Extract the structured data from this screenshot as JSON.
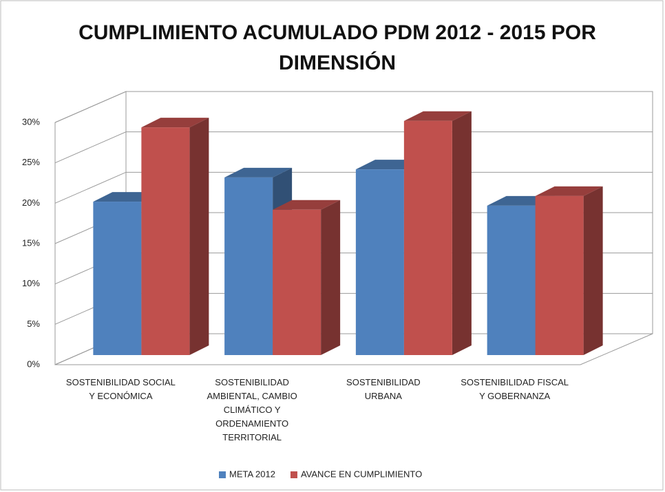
{
  "chart_data": {
    "type": "bar3d",
    "title": "CUMPLIMIENTO ACUMULADO PDM 2012 - 2015 POR DIMENSIÓN",
    "categories": [
      "SOSTENIBILIDAD SOCIAL Y ECONÓMICA",
      "SOSTENIBILIDAD AMBIENTAL, CAMBIO CLIMÁTICO Y ORDENAMIENTO TERRITORIAL",
      "SOSTENIBILIDAD URBANA",
      "SOSTENIBILIDAD FISCAL Y GOBERNANZA"
    ],
    "series": [
      {
        "name": "META 2012",
        "color": "#4f81bd",
        "values": [
          19,
          22,
          23,
          18.5
        ]
      },
      {
        "name": "AVANCE EN CUMPLIMIENTO",
        "color": "#c0504d",
        "values": [
          28.2,
          18,
          29,
          19.7
        ]
      }
    ],
    "ylim": [
      0,
      30
    ],
    "yticks": [
      {
        "value": 0,
        "label": "0%"
      },
      {
        "value": 5,
        "label": "5%"
      },
      {
        "value": 10,
        "label": "10%"
      },
      {
        "value": 15,
        "label": "15%"
      },
      {
        "value": 20,
        "label": "20%"
      },
      {
        "value": 25,
        "label": "25%"
      },
      {
        "value": 30,
        "label": "30%"
      }
    ],
    "grid": true,
    "legend": "bottom"
  }
}
